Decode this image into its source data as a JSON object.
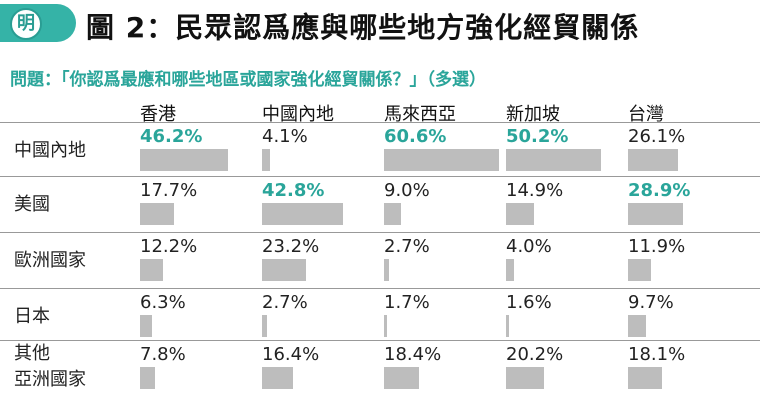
{
  "logo": {
    "char": "明"
  },
  "title": "圖 2：民眾認爲應與哪些地方強化經貿關係",
  "question": "問題：「你認爲最應和哪些地區或國家強化經貿關係？」（多選）",
  "colors": {
    "accent": "#2aa59a",
    "bar": "#bdbdbd",
    "logo_bg": "#35b3a7"
  },
  "chart_data": {
    "type": "table",
    "title": "圖 2：民眾認爲應與哪些地方強化經貿關係",
    "columns": [
      "香港",
      "中國內地",
      "馬來西亞",
      "新加坡",
      "台灣"
    ],
    "rows": [
      {
        "label": "中國內地",
        "values": [
          46.2,
          4.1,
          60.6,
          50.2,
          26.1
        ],
        "display": [
          "46.2%",
          "4.1%",
          "60.6%",
          "50.2%",
          "26.1%"
        ],
        "highlight": [
          true,
          false,
          true,
          true,
          false
        ]
      },
      {
        "label": "美國",
        "values": [
          17.7,
          42.8,
          9.0,
          14.9,
          28.9
        ],
        "display": [
          "17.7%",
          "42.8%",
          "9.0%",
          "14.9%",
          "28.9%"
        ],
        "highlight": [
          false,
          true,
          false,
          false,
          true
        ]
      },
      {
        "label": "歐洲國家",
        "values": [
          12.2,
          23.2,
          2.7,
          4.0,
          11.9
        ],
        "display": [
          "12.2%",
          "23.2%",
          "2.7%",
          "4.0%",
          "11.9%"
        ],
        "highlight": [
          false,
          false,
          false,
          false,
          false
        ]
      },
      {
        "label": "日本",
        "values": [
          6.3,
          2.7,
          1.7,
          1.6,
          9.7
        ],
        "display": [
          "6.3%",
          "2.7%",
          "1.7%",
          "1.6%",
          "9.7%"
        ],
        "highlight": [
          false,
          false,
          false,
          false,
          false
        ]
      },
      {
        "label": "其他\n亞洲國家",
        "values": [
          7.8,
          16.4,
          18.4,
          20.2,
          18.1
        ],
        "display": [
          "7.8%",
          "16.4%",
          "18.4%",
          "20.2%",
          "18.1%"
        ],
        "highlight": [
          false,
          false,
          false,
          false,
          false
        ]
      }
    ]
  }
}
